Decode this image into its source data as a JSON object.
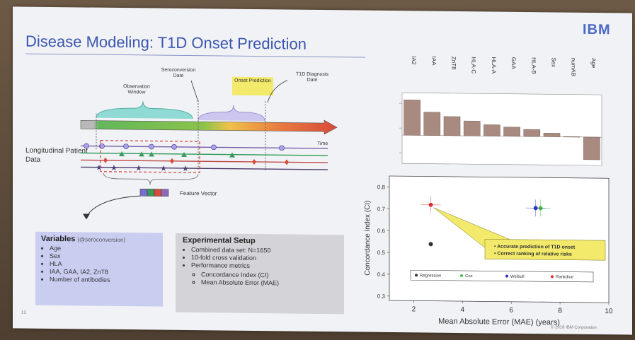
{
  "brand": "IBM",
  "title": "Disease Modeling: T1D Onset Prediction",
  "timeline": {
    "seroconversion": "Seroconversion Date",
    "observation": "Observation Window",
    "onset": "Onset Prediction",
    "diagnosis": "T1D Diagnosis Date",
    "time": "Time",
    "patient_label": "Longitudinal Patient Data",
    "feature_vector": "Feature Vector"
  },
  "variables": {
    "heading": "Variables",
    "heading_note": "(@seroconversion)",
    "items": [
      "Age",
      "Sex",
      "HLA",
      "IAA, GAA, IA2, ZnT8",
      "Number of antibodies"
    ]
  },
  "setup": {
    "heading": "Experimental Setup",
    "items": [
      "Combined data set: N=1650",
      "10-fold cross validation",
      "Performance metrics"
    ],
    "subitems": [
      "Concordance Index (CI)",
      "Mean Absolute Error (MAE)"
    ]
  },
  "chart_data": [
    {
      "type": "bar",
      "categories": [
        "IA2",
        "IAA",
        "ZnT8",
        "HLA-C",
        "HLA-A",
        "GAA",
        "HLA-B",
        "Sex",
        "numAB",
        "Age"
      ],
      "values": [
        0.5,
        0.33,
        0.27,
        0.21,
        0.16,
        0.13,
        0.1,
        0.05,
        0.005,
        -0.32
      ],
      "ylabel": "",
      "ylim": [
        -0.4,
        0.6
      ]
    },
    {
      "type": "scatter",
      "xlabel": "Mean Absolute Error (MAE) (years)",
      "ylabel": "Concordance Index (CI)",
      "xlim": [
        1,
        10
      ],
      "ylim": [
        0.28,
        0.85
      ],
      "xticks": [
        "2",
        "4",
        "6",
        "8",
        "10"
      ],
      "yticks": [
        "0.3",
        "0.4",
        "0.5",
        "0.6",
        "0.7",
        "0.8"
      ],
      "series": [
        {
          "name": "Regression",
          "color": "#333333",
          "x": [
            2.7
          ],
          "y": [
            0.54
          ]
        },
        {
          "name": "Cox",
          "color": "#3fbf3f",
          "x": [
            7.2
          ],
          "y": [
            0.71
          ]
        },
        {
          "name": "Weibull",
          "color": "#3333cc",
          "x": [
            7.0
          ],
          "y": [
            0.71
          ]
        },
        {
          "name": "Rankdive",
          "color": "#d83030",
          "x": [
            2.7
          ],
          "y": [
            0.72
          ]
        }
      ],
      "annotation": [
        "Accurate prediction of T1D onset",
        "Correct ranking of relative risks"
      ]
    }
  ],
  "footer": {
    "page": "13",
    "copyright": "© 2018 IBM Corporation"
  }
}
